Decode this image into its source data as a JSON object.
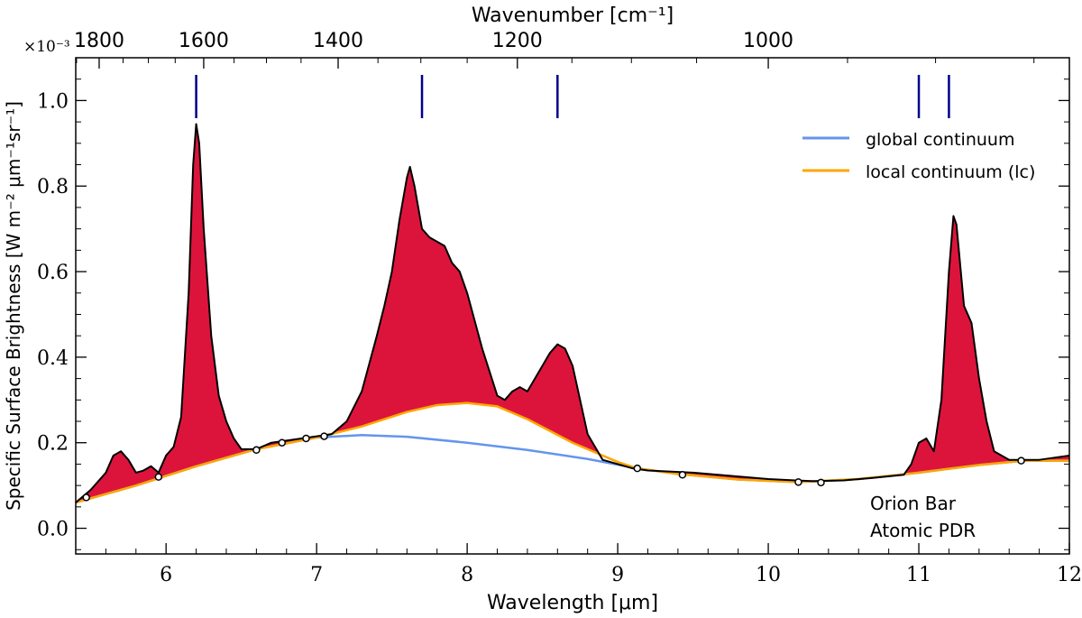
{
  "chart_data": {
    "type": "area",
    "title": "",
    "xlabel": "Wavelength [μm]",
    "ylabel": "Specific Surface Brightness [W m⁻² μm⁻¹sr⁻¹]",
    "top_axis_label": "Wavenumber [cm⁻¹]",
    "y_multiplier": "×10⁻³",
    "xlim": [
      5.4,
      12.0
    ],
    "ylim": [
      -0.06,
      1.1
    ],
    "x_ticks": [
      6,
      7,
      8,
      9,
      10,
      11,
      12
    ],
    "x_tick_labels": [
      "6",
      "7",
      "8",
      "9",
      "10",
      "11",
      "12"
    ],
    "y_ticks": [
      0.0,
      0.2,
      0.4,
      0.6,
      0.8,
      1.0
    ],
    "y_tick_labels": [
      "0.0",
      "0.2",
      "0.4",
      "0.6",
      "0.8",
      "1.0"
    ],
    "top_ticks": [
      1800,
      1600,
      1400,
      1200,
      1000
    ],
    "top_tick_labels": [
      "1800",
      "1600",
      "1400",
      "1200",
      "1000"
    ],
    "grid": false,
    "legend_position": "upper-right",
    "annotation": [
      "Orion Bar",
      "Atomic PDR"
    ],
    "feature_markers": [
      6.2,
      7.7,
      8.6,
      11.0,
      11.2
    ],
    "anchor_points": {
      "x": [
        5.47,
        5.95,
        6.6,
        6.77,
        6.93,
        7.05,
        9.13,
        9.43,
        10.2,
        10.35,
        11.68
      ],
      "y": [
        0.072,
        0.12,
        0.183,
        0.2,
        0.21,
        0.215,
        0.14,
        0.125,
        0.108,
        0.107,
        0.158
      ]
    },
    "series": [
      {
        "name": "global continuum",
        "color": "#6495ed",
        "x": [
          5.4,
          5.8,
          6.2,
          6.6,
          7.0,
          7.3,
          7.6,
          8.0,
          8.4,
          8.8,
          9.13,
          9.4,
          9.8,
          10.2,
          10.6,
          11.0,
          11.4,
          11.7,
          12.0
        ],
        "y": [
          0.06,
          0.1,
          0.145,
          0.185,
          0.212,
          0.218,
          0.214,
          0.2,
          0.183,
          0.162,
          0.14,
          0.127,
          0.114,
          0.108,
          0.115,
          0.13,
          0.148,
          0.158,
          0.158
        ]
      },
      {
        "name": "local continuum (lc)",
        "color": "#ffa500",
        "x": [
          5.4,
          5.8,
          6.2,
          6.6,
          7.0,
          7.3,
          7.6,
          7.8,
          8.0,
          8.2,
          8.4,
          8.7,
          9.0,
          9.13,
          9.4,
          9.8,
          10.2,
          10.6,
          11.0,
          11.4,
          11.7,
          12.0
        ],
        "y": [
          0.06,
          0.1,
          0.145,
          0.185,
          0.212,
          0.238,
          0.272,
          0.288,
          0.293,
          0.285,
          0.255,
          0.2,
          0.155,
          0.14,
          0.127,
          0.114,
          0.108,
          0.115,
          0.13,
          0.148,
          0.158,
          0.158
        ]
      },
      {
        "name": "",
        "color": "#000000",
        "x": [
          5.4,
          5.5,
          5.6,
          5.65,
          5.7,
          5.75,
          5.8,
          5.85,
          5.9,
          5.95,
          6.0,
          6.05,
          6.1,
          6.15,
          6.18,
          6.2,
          6.22,
          6.25,
          6.3,
          6.35,
          6.4,
          6.45,
          6.5,
          6.6,
          6.7,
          6.8,
          6.9,
          7.0,
          7.1,
          7.2,
          7.3,
          7.4,
          7.45,
          7.5,
          7.55,
          7.6,
          7.62,
          7.65,
          7.7,
          7.75,
          7.8,
          7.85,
          7.9,
          7.95,
          8.0,
          8.1,
          8.2,
          8.25,
          8.3,
          8.35,
          8.4,
          8.45,
          8.5,
          8.55,
          8.6,
          8.65,
          8.7,
          8.75,
          8.8,
          8.9,
          9.0,
          9.1,
          9.2,
          9.5,
          10.0,
          10.3,
          10.5,
          10.7,
          10.9,
          10.95,
          11.0,
          11.05,
          11.1,
          11.15,
          11.2,
          11.23,
          11.25,
          11.3,
          11.35,
          11.4,
          11.45,
          11.5,
          11.6,
          11.7,
          11.8,
          11.9,
          12.0
        ],
        "y": [
          0.06,
          0.09,
          0.13,
          0.17,
          0.18,
          0.16,
          0.13,
          0.135,
          0.145,
          0.13,
          0.17,
          0.19,
          0.26,
          0.55,
          0.85,
          0.945,
          0.9,
          0.7,
          0.45,
          0.31,
          0.25,
          0.21,
          0.185,
          0.185,
          0.2,
          0.205,
          0.21,
          0.215,
          0.22,
          0.25,
          0.32,
          0.45,
          0.52,
          0.6,
          0.72,
          0.82,
          0.845,
          0.8,
          0.7,
          0.68,
          0.67,
          0.66,
          0.62,
          0.6,
          0.55,
          0.42,
          0.31,
          0.3,
          0.32,
          0.33,
          0.32,
          0.35,
          0.38,
          0.41,
          0.43,
          0.42,
          0.38,
          0.3,
          0.22,
          0.16,
          0.15,
          0.14,
          0.135,
          0.13,
          0.115,
          0.11,
          0.112,
          0.118,
          0.125,
          0.15,
          0.2,
          0.21,
          0.18,
          0.3,
          0.6,
          0.73,
          0.71,
          0.52,
          0.48,
          0.35,
          0.25,
          0.18,
          0.16,
          0.16,
          0.16,
          0.165,
          0.17
        ]
      }
    ],
    "fill_color": "#dc143c"
  }
}
